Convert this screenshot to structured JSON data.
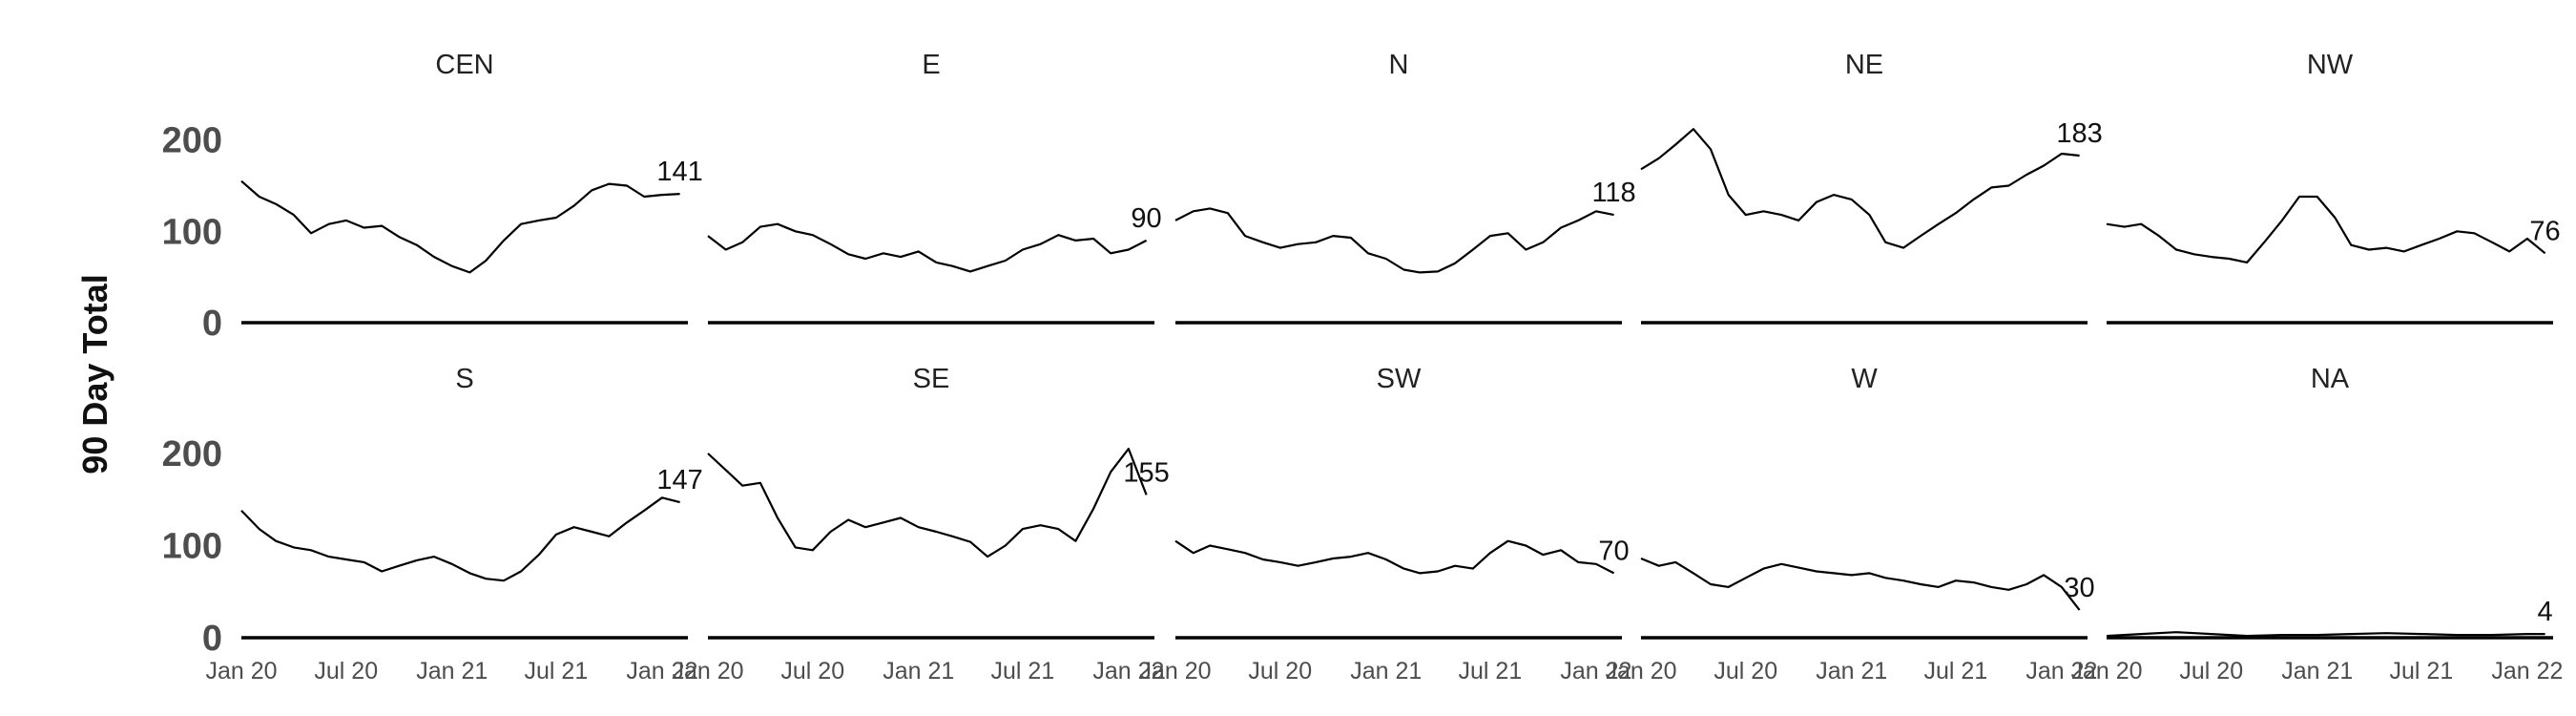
{
  "chart_data": {
    "type": "line",
    "ylabel": "90 Day Total",
    "ylim": [
      0,
      230
    ],
    "yticks": [
      0,
      100,
      200
    ],
    "x_range": [
      "2020-01-01",
      "2022-02-15"
    ],
    "xticks": [
      {
        "date": "2020-01-01",
        "label": "Jan 20"
      },
      {
        "date": "2020-07-01",
        "label": "Jul 20"
      },
      {
        "date": "2021-01-01",
        "label": "Jan 21"
      },
      {
        "date": "2021-07-01",
        "label": "Jul 21"
      },
      {
        "date": "2022-01-01",
        "label": "Jan 22"
      }
    ],
    "grid": false,
    "facets": [
      {
        "title": "CEN",
        "end_label": "141",
        "points": [
          [
            "2020-01-01",
            155
          ],
          [
            "2020-02-01",
            138
          ],
          [
            "2020-03-01",
            130
          ],
          [
            "2020-04-01",
            118
          ],
          [
            "2020-05-01",
            98
          ],
          [
            "2020-06-01",
            108
          ],
          [
            "2020-07-01",
            112
          ],
          [
            "2020-08-01",
            104
          ],
          [
            "2020-09-01",
            106
          ],
          [
            "2020-10-01",
            94
          ],
          [
            "2020-11-01",
            85
          ],
          [
            "2020-12-01",
            72
          ],
          [
            "2021-01-01",
            62
          ],
          [
            "2021-02-01",
            55
          ],
          [
            "2021-03-01",
            68
          ],
          [
            "2021-04-01",
            90
          ],
          [
            "2021-05-01",
            108
          ],
          [
            "2021-06-01",
            112
          ],
          [
            "2021-07-01",
            115
          ],
          [
            "2021-08-01",
            128
          ],
          [
            "2021-09-01",
            145
          ],
          [
            "2021-10-01",
            152
          ],
          [
            "2021-11-01",
            150
          ],
          [
            "2021-12-01",
            138
          ],
          [
            "2022-01-01",
            140
          ],
          [
            "2022-02-01",
            141
          ]
        ]
      },
      {
        "title": "E",
        "end_label": "90",
        "points": [
          [
            "2020-01-01",
            95
          ],
          [
            "2020-02-01",
            80
          ],
          [
            "2020-03-01",
            88
          ],
          [
            "2020-04-01",
            105
          ],
          [
            "2020-05-01",
            108
          ],
          [
            "2020-06-01",
            100
          ],
          [
            "2020-07-01",
            96
          ],
          [
            "2020-08-01",
            86
          ],
          [
            "2020-09-01",
            75
          ],
          [
            "2020-10-01",
            70
          ],
          [
            "2020-11-01",
            76
          ],
          [
            "2020-12-01",
            72
          ],
          [
            "2021-01-01",
            78
          ],
          [
            "2021-02-01",
            66
          ],
          [
            "2021-03-01",
            62
          ],
          [
            "2021-04-01",
            56
          ],
          [
            "2021-05-01",
            62
          ],
          [
            "2021-06-01",
            68
          ],
          [
            "2021-07-01",
            80
          ],
          [
            "2021-08-01",
            86
          ],
          [
            "2021-09-01",
            96
          ],
          [
            "2021-10-01",
            90
          ],
          [
            "2021-11-01",
            92
          ],
          [
            "2021-12-01",
            76
          ],
          [
            "2022-01-01",
            80
          ],
          [
            "2022-02-01",
            90
          ]
        ]
      },
      {
        "title": "N",
        "end_label": "118",
        "points": [
          [
            "2020-01-01",
            112
          ],
          [
            "2020-02-01",
            122
          ],
          [
            "2020-03-01",
            125
          ],
          [
            "2020-04-01",
            120
          ],
          [
            "2020-05-01",
            95
          ],
          [
            "2020-06-01",
            88
          ],
          [
            "2020-07-01",
            82
          ],
          [
            "2020-08-01",
            86
          ],
          [
            "2020-09-01",
            88
          ],
          [
            "2020-10-01",
            95
          ],
          [
            "2020-11-01",
            93
          ],
          [
            "2020-12-01",
            76
          ],
          [
            "2021-01-01",
            70
          ],
          [
            "2021-02-01",
            58
          ],
          [
            "2021-03-01",
            55
          ],
          [
            "2021-04-01",
            56
          ],
          [
            "2021-05-01",
            65
          ],
          [
            "2021-06-01",
            80
          ],
          [
            "2021-07-01",
            95
          ],
          [
            "2021-08-01",
            98
          ],
          [
            "2021-09-01",
            80
          ],
          [
            "2021-10-01",
            88
          ],
          [
            "2021-11-01",
            104
          ],
          [
            "2021-12-01",
            112
          ],
          [
            "2022-01-01",
            122
          ],
          [
            "2022-02-01",
            118
          ]
        ]
      },
      {
        "title": "NE",
        "end_label": "183",
        "points": [
          [
            "2020-01-01",
            168
          ],
          [
            "2020-02-01",
            180
          ],
          [
            "2020-03-01",
            195
          ],
          [
            "2020-04-01",
            212
          ],
          [
            "2020-05-01",
            190
          ],
          [
            "2020-06-01",
            140
          ],
          [
            "2020-07-01",
            118
          ],
          [
            "2020-08-01",
            122
          ],
          [
            "2020-09-01",
            118
          ],
          [
            "2020-10-01",
            112
          ],
          [
            "2020-11-01",
            132
          ],
          [
            "2020-12-01",
            140
          ],
          [
            "2021-01-01",
            135
          ],
          [
            "2021-02-01",
            118
          ],
          [
            "2021-03-01",
            88
          ],
          [
            "2021-04-01",
            82
          ],
          [
            "2021-05-01",
            95
          ],
          [
            "2021-06-01",
            108
          ],
          [
            "2021-07-01",
            120
          ],
          [
            "2021-08-01",
            135
          ],
          [
            "2021-09-01",
            148
          ],
          [
            "2021-10-01",
            150
          ],
          [
            "2021-11-01",
            162
          ],
          [
            "2021-12-01",
            172
          ],
          [
            "2022-01-01",
            185
          ],
          [
            "2022-02-01",
            183
          ]
        ]
      },
      {
        "title": "NW",
        "end_label": "76",
        "points": [
          [
            "2020-01-01",
            108
          ],
          [
            "2020-02-01",
            105
          ],
          [
            "2020-03-01",
            108
          ],
          [
            "2020-04-01",
            95
          ],
          [
            "2020-05-01",
            80
          ],
          [
            "2020-06-01",
            75
          ],
          [
            "2020-07-01",
            72
          ],
          [
            "2020-08-01",
            70
          ],
          [
            "2020-09-01",
            66
          ],
          [
            "2020-10-01",
            88
          ],
          [
            "2020-11-01",
            112
          ],
          [
            "2020-12-01",
            138
          ],
          [
            "2021-01-01",
            138
          ],
          [
            "2021-02-01",
            115
          ],
          [
            "2021-03-01",
            85
          ],
          [
            "2021-04-01",
            80
          ],
          [
            "2021-05-01",
            82
          ],
          [
            "2021-06-01",
            78
          ],
          [
            "2021-07-01",
            85
          ],
          [
            "2021-08-01",
            92
          ],
          [
            "2021-09-01",
            100
          ],
          [
            "2021-10-01",
            98
          ],
          [
            "2021-11-01",
            88
          ],
          [
            "2021-12-01",
            78
          ],
          [
            "2022-01-01",
            92
          ],
          [
            "2022-02-01",
            76
          ]
        ]
      },
      {
        "title": "S",
        "end_label": "147",
        "points": [
          [
            "2020-01-01",
            138
          ],
          [
            "2020-02-01",
            118
          ],
          [
            "2020-03-01",
            105
          ],
          [
            "2020-04-01",
            98
          ],
          [
            "2020-05-01",
            95
          ],
          [
            "2020-06-01",
            88
          ],
          [
            "2020-07-01",
            85
          ],
          [
            "2020-08-01",
            82
          ],
          [
            "2020-09-01",
            72
          ],
          [
            "2020-10-01",
            78
          ],
          [
            "2020-11-01",
            84
          ],
          [
            "2020-12-01",
            88
          ],
          [
            "2021-01-01",
            80
          ],
          [
            "2021-02-01",
            70
          ],
          [
            "2021-03-01",
            64
          ],
          [
            "2021-04-01",
            62
          ],
          [
            "2021-05-01",
            72
          ],
          [
            "2021-06-01",
            90
          ],
          [
            "2021-07-01",
            112
          ],
          [
            "2021-08-01",
            120
          ],
          [
            "2021-09-01",
            115
          ],
          [
            "2021-10-01",
            110
          ],
          [
            "2021-11-01",
            125
          ],
          [
            "2021-12-01",
            138
          ],
          [
            "2022-01-01",
            152
          ],
          [
            "2022-02-01",
            147
          ]
        ]
      },
      {
        "title": "SE",
        "end_label": "155",
        "points": [
          [
            "2020-01-01",
            200
          ],
          [
            "2020-02-01",
            182
          ],
          [
            "2020-03-01",
            165
          ],
          [
            "2020-04-01",
            168
          ],
          [
            "2020-05-01",
            130
          ],
          [
            "2020-06-01",
            98
          ],
          [
            "2020-07-01",
            95
          ],
          [
            "2020-08-01",
            115
          ],
          [
            "2020-09-01",
            128
          ],
          [
            "2020-10-01",
            120
          ],
          [
            "2020-11-01",
            125
          ],
          [
            "2020-12-01",
            130
          ],
          [
            "2021-01-01",
            120
          ],
          [
            "2021-02-01",
            115
          ],
          [
            "2021-03-01",
            110
          ],
          [
            "2021-04-01",
            104
          ],
          [
            "2021-05-01",
            88
          ],
          [
            "2021-06-01",
            100
          ],
          [
            "2021-07-01",
            118
          ],
          [
            "2021-08-01",
            122
          ],
          [
            "2021-09-01",
            118
          ],
          [
            "2021-10-01",
            105
          ],
          [
            "2021-11-01",
            140
          ],
          [
            "2021-12-01",
            180
          ],
          [
            "2022-01-01",
            205
          ],
          [
            "2022-02-01",
            155
          ]
        ]
      },
      {
        "title": "SW",
        "end_label": "70",
        "points": [
          [
            "2020-01-01",
            105
          ],
          [
            "2020-02-01",
            92
          ],
          [
            "2020-03-01",
            100
          ],
          [
            "2020-04-01",
            96
          ],
          [
            "2020-05-01",
            92
          ],
          [
            "2020-06-01",
            85
          ],
          [
            "2020-07-01",
            82
          ],
          [
            "2020-08-01",
            78
          ],
          [
            "2020-09-01",
            82
          ],
          [
            "2020-10-01",
            86
          ],
          [
            "2020-11-01",
            88
          ],
          [
            "2020-12-01",
            92
          ],
          [
            "2021-01-01",
            85
          ],
          [
            "2021-02-01",
            75
          ],
          [
            "2021-03-01",
            70
          ],
          [
            "2021-04-01",
            72
          ],
          [
            "2021-05-01",
            78
          ],
          [
            "2021-06-01",
            75
          ],
          [
            "2021-07-01",
            92
          ],
          [
            "2021-08-01",
            105
          ],
          [
            "2021-09-01",
            100
          ],
          [
            "2021-10-01",
            90
          ],
          [
            "2021-11-01",
            95
          ],
          [
            "2021-12-01",
            82
          ],
          [
            "2022-01-01",
            80
          ],
          [
            "2022-02-01",
            70
          ]
        ]
      },
      {
        "title": "W",
        "end_label": "30",
        "points": [
          [
            "2020-01-01",
            86
          ],
          [
            "2020-02-01",
            78
          ],
          [
            "2020-03-01",
            82
          ],
          [
            "2020-04-01",
            70
          ],
          [
            "2020-05-01",
            58
          ],
          [
            "2020-06-01",
            55
          ],
          [
            "2020-07-01",
            65
          ],
          [
            "2020-08-01",
            75
          ],
          [
            "2020-09-01",
            80
          ],
          [
            "2020-10-01",
            76
          ],
          [
            "2020-11-01",
            72
          ],
          [
            "2020-12-01",
            70
          ],
          [
            "2021-01-01",
            68
          ],
          [
            "2021-02-01",
            70
          ],
          [
            "2021-03-01",
            65
          ],
          [
            "2021-04-01",
            62
          ],
          [
            "2021-05-01",
            58
          ],
          [
            "2021-06-01",
            55
          ],
          [
            "2021-07-01",
            62
          ],
          [
            "2021-08-01",
            60
          ],
          [
            "2021-09-01",
            55
          ],
          [
            "2021-10-01",
            52
          ],
          [
            "2021-11-01",
            58
          ],
          [
            "2021-12-01",
            68
          ],
          [
            "2022-01-01",
            55
          ],
          [
            "2022-02-01",
            30
          ]
        ]
      },
      {
        "title": "NA",
        "end_label": "4",
        "points": [
          [
            "2020-01-01",
            2
          ],
          [
            "2020-03-01",
            4
          ],
          [
            "2020-05-01",
            6
          ],
          [
            "2020-07-01",
            4
          ],
          [
            "2020-09-01",
            2
          ],
          [
            "2020-11-01",
            3
          ],
          [
            "2021-01-01",
            3
          ],
          [
            "2021-03-01",
            4
          ],
          [
            "2021-05-01",
            5
          ],
          [
            "2021-07-01",
            4
          ],
          [
            "2021-09-01",
            3
          ],
          [
            "2021-11-01",
            3
          ],
          [
            "2022-01-01",
            4
          ],
          [
            "2022-02-01",
            4
          ]
        ]
      }
    ]
  }
}
